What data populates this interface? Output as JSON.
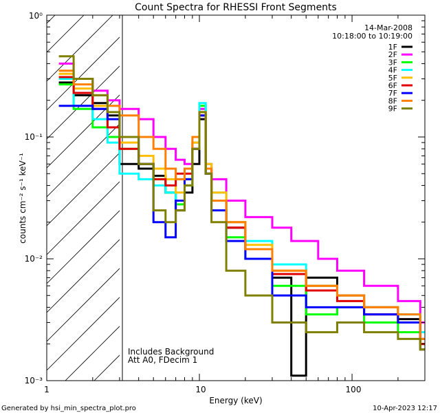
{
  "chart_data": {
    "type": "line",
    "title": "Count Spectra for RHESSI Front Segments",
    "xlabel": "Energy (keV)",
    "ylabel": "counts cm⁻² s⁻¹ keV⁻¹",
    "xscale": "log",
    "yscale": "log",
    "xlim": [
      1,
      300
    ],
    "ylim": [
      0.001,
      1
    ],
    "x_ticks": [
      {
        "value": 1,
        "label": "1"
      },
      {
        "value": 10,
        "label": "10"
      },
      {
        "value": 100,
        "label": "100"
      }
    ],
    "y_ticks": [
      {
        "value": 0.001,
        "label": "10⁻³"
      },
      {
        "value": 0.01,
        "label": "10⁻²"
      },
      {
        "value": 0.1,
        "label": "10⁻¹"
      },
      {
        "value": 1,
        "label": "10⁰"
      }
    ],
    "shaded_region": {
      "x_from": 1,
      "x_to": 3,
      "pattern": "diagonal-hatch"
    },
    "legend_header": {
      "date": "14-Mar-2008",
      "time_range": "10:18:00 to 10:19:00"
    },
    "legend_position": "top-right",
    "annotations": [
      "Includes Background",
      "Att A0, FDecim 1"
    ],
    "series": [
      {
        "name": "1F",
        "color": "#000000",
        "points": [
          [
            1.2,
            0.28
          ],
          [
            1.5,
            0.22
          ],
          [
            2,
            0.19
          ],
          [
            2.5,
            0.15
          ],
          [
            3,
            0.06
          ],
          [
            4,
            0.055
          ],
          [
            5,
            0.048
          ],
          [
            6,
            0.035
          ],
          [
            7,
            0.025
          ],
          [
            8,
            0.035
          ],
          [
            9,
            0.06
          ],
          [
            10,
            0.14
          ],
          [
            11,
            0.05
          ],
          [
            12,
            0.03
          ],
          [
            15,
            0.018
          ],
          [
            20,
            0.012
          ],
          [
            30,
            0.007
          ],
          [
            40,
            0.0011
          ],
          [
            50,
            0.007
          ],
          [
            80,
            0.005
          ],
          [
            120,
            0.004
          ],
          [
            200,
            0.0032
          ],
          [
            280,
            0.0018
          ]
        ]
      },
      {
        "name": "2F",
        "color": "#ff00ff",
        "points": [
          [
            1.2,
            0.4
          ],
          [
            1.5,
            0.3
          ],
          [
            2,
            0.24
          ],
          [
            2.5,
            0.2
          ],
          [
            3,
            0.17
          ],
          [
            4,
            0.14
          ],
          [
            5,
            0.1
          ],
          [
            6,
            0.08
          ],
          [
            7,
            0.065
          ],
          [
            8,
            0.06
          ],
          [
            9,
            0.09
          ],
          [
            10,
            0.17
          ],
          [
            11,
            0.06
          ],
          [
            12,
            0.045
          ],
          [
            15,
            0.03
          ],
          [
            20,
            0.022
          ],
          [
            30,
            0.018
          ],
          [
            40,
            0.014
          ],
          [
            60,
            0.01
          ],
          [
            80,
            0.008
          ],
          [
            120,
            0.006
          ],
          [
            200,
            0.0045
          ],
          [
            280,
            0.003
          ]
        ]
      },
      {
        "name": "3F",
        "color": "#00ff00",
        "points": [
          [
            1.2,
            0.27
          ],
          [
            1.5,
            0.17
          ],
          [
            2,
            0.12
          ],
          [
            2.5,
            0.1
          ],
          [
            3,
            0.08
          ],
          [
            4,
            0.06
          ],
          [
            5,
            0.045
          ],
          [
            6,
            0.035
          ],
          [
            7,
            0.028
          ],
          [
            8,
            0.04
          ],
          [
            9,
            0.08
          ],
          [
            10,
            0.18
          ],
          [
            11,
            0.055
          ],
          [
            12,
            0.03
          ],
          [
            15,
            0.015
          ],
          [
            20,
            0.01
          ],
          [
            30,
            0.006
          ],
          [
            50,
            0.0035
          ],
          [
            80,
            0.004
          ],
          [
            120,
            0.003
          ],
          [
            200,
            0.0025
          ],
          [
            280,
            0.002
          ]
        ]
      },
      {
        "name": "4F",
        "color": "#00ffff",
        "points": [
          [
            1.2,
            0.3
          ],
          [
            1.5,
            0.18
          ],
          [
            2,
            0.14
          ],
          [
            2.5,
            0.09
          ],
          [
            3,
            0.05
          ],
          [
            4,
            0.045
          ],
          [
            5,
            0.04
          ],
          [
            6,
            0.035
          ],
          [
            7,
            0.03
          ],
          [
            8,
            0.045
          ],
          [
            9,
            0.09
          ],
          [
            10,
            0.19
          ],
          [
            11,
            0.06
          ],
          [
            12,
            0.035
          ],
          [
            15,
            0.02
          ],
          [
            20,
            0.014
          ],
          [
            30,
            0.009
          ],
          [
            50,
            0.006
          ],
          [
            80,
            0.005
          ],
          [
            120,
            0.004
          ],
          [
            200,
            0.0035
          ],
          [
            280,
            0.0025
          ]
        ]
      },
      {
        "name": "5F",
        "color": "#ffbf00",
        "points": [
          [
            1.2,
            0.33
          ],
          [
            1.5,
            0.25
          ],
          [
            2,
            0.18
          ],
          [
            2.5,
            0.12
          ],
          [
            3,
            0.09
          ],
          [
            4,
            0.07
          ],
          [
            5,
            0.055
          ],
          [
            6,
            0.045
          ],
          [
            7,
            0.035
          ],
          [
            8,
            0.045
          ],
          [
            9,
            0.09
          ],
          [
            10,
            0.16
          ],
          [
            11,
            0.06
          ],
          [
            12,
            0.035
          ],
          [
            15,
            0.02
          ],
          [
            20,
            0.013
          ],
          [
            30,
            0.008
          ],
          [
            50,
            0.006
          ],
          [
            80,
            0.005
          ],
          [
            120,
            0.004
          ],
          [
            200,
            0.003
          ],
          [
            280,
            0.002
          ]
        ]
      },
      {
        "name": "6F",
        "color": "#e00000",
        "points": [
          [
            1.2,
            0.31
          ],
          [
            1.5,
            0.23
          ],
          [
            2,
            0.17
          ],
          [
            2.5,
            0.12
          ],
          [
            3,
            0.08
          ],
          [
            4,
            0.06
          ],
          [
            5,
            0.045
          ],
          [
            6,
            0.04
          ],
          [
            7,
            0.05
          ],
          [
            8,
            0.05
          ],
          [
            9,
            0.08
          ],
          [
            10,
            0.15
          ],
          [
            11,
            0.055
          ],
          [
            12,
            0.03
          ],
          [
            15,
            0.018
          ],
          [
            20,
            0.012
          ],
          [
            30,
            0.0075
          ],
          [
            50,
            0.0055
          ],
          [
            80,
            0.0045
          ],
          [
            120,
            0.0035
          ],
          [
            200,
            0.003
          ],
          [
            280,
            0.002
          ]
        ]
      },
      {
        "name": "7F",
        "color": "#0000ff",
        "points": [
          [
            1.2,
            0.18
          ],
          [
            1.5,
            0.18
          ],
          [
            2,
            0.17
          ],
          [
            2.5,
            0.14
          ],
          [
            3,
            0.1
          ],
          [
            4,
            0.06
          ],
          [
            5,
            0.02
          ],
          [
            6,
            0.015
          ],
          [
            7,
            0.03
          ],
          [
            8,
            0.045
          ],
          [
            9,
            0.08
          ],
          [
            10,
            0.15
          ],
          [
            11,
            0.05
          ],
          [
            12,
            0.025
          ],
          [
            15,
            0.014
          ],
          [
            20,
            0.01
          ],
          [
            30,
            0.005
          ],
          [
            50,
            0.004
          ],
          [
            80,
            0.004
          ],
          [
            120,
            0.0035
          ],
          [
            200,
            0.003
          ],
          [
            280,
            0.0022
          ]
        ]
      },
      {
        "name": "8F",
        "color": "#ff7f00",
        "points": [
          [
            1.2,
            0.35
          ],
          [
            1.5,
            0.27
          ],
          [
            2,
            0.22
          ],
          [
            2.5,
            0.18
          ],
          [
            3,
            0.15
          ],
          [
            4,
            0.1
          ],
          [
            5,
            0.08
          ],
          [
            6,
            0.055
          ],
          [
            7,
            0.045
          ],
          [
            8,
            0.055
          ],
          [
            9,
            0.1
          ],
          [
            10,
            0.16
          ],
          [
            11,
            0.055
          ],
          [
            12,
            0.03
          ],
          [
            15,
            0.02
          ],
          [
            20,
            0.012
          ],
          [
            30,
            0.008
          ],
          [
            50,
            0.006
          ],
          [
            80,
            0.005
          ],
          [
            120,
            0.004
          ],
          [
            200,
            0.0035
          ],
          [
            280,
            0.0022
          ]
        ]
      },
      {
        "name": "9F",
        "color": "#808000",
        "points": [
          [
            1.2,
            0.46
          ],
          [
            1.5,
            0.3
          ],
          [
            2,
            0.22
          ],
          [
            2.5,
            0.16
          ],
          [
            3,
            0.1
          ],
          [
            4,
            0.06
          ],
          [
            5,
            0.025
          ],
          [
            6,
            0.02
          ],
          [
            7,
            0.025
          ],
          [
            8,
            0.04
          ],
          [
            9,
            0.08
          ],
          [
            10,
            0.16
          ],
          [
            11,
            0.05
          ],
          [
            12,
            0.02
          ],
          [
            15,
            0.008
          ],
          [
            20,
            0.005
          ],
          [
            30,
            0.003
          ],
          [
            50,
            0.0025
          ],
          [
            80,
            0.003
          ],
          [
            120,
            0.0025
          ],
          [
            200,
            0.0022
          ],
          [
            280,
            0.0018
          ]
        ]
      }
    ]
  },
  "footer": {
    "generated_by": "Generated by hsi_min_spectra_plot.pro",
    "timestamp": "10-Apr-2023 12:17"
  }
}
